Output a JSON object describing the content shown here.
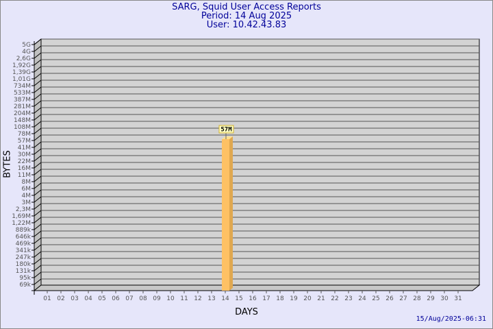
{
  "chart_data": {
    "type": "bar",
    "title": "SARG, Squid User Access Reports",
    "subtitle_period": "Period: 14 Aug 2025",
    "subtitle_user": "User: 10.42.43.83",
    "xlabel": "DAYS",
    "ylabel": "BYTES",
    "y_scale": "log",
    "y_tick_labels": [
      "5G",
      "4G",
      "2,6G",
      "1,92G",
      "1,39G",
      "1,01G",
      "734M",
      "533M",
      "387M",
      "281M",
      "204M",
      "148M",
      "108M",
      "78M",
      "57M",
      "41M",
      "30M",
      "22M",
      "16M",
      "11M",
      "8M",
      "6M",
      "4M",
      "3M",
      "2,3M",
      "1,69M",
      "1,22M",
      "889k",
      "646k",
      "469k",
      "341k",
      "247k",
      "180k",
      "131k",
      "95k",
      "69k"
    ],
    "categories": [
      "01",
      "02",
      "03",
      "04",
      "05",
      "06",
      "07",
      "08",
      "09",
      "10",
      "11",
      "12",
      "13",
      "14",
      "15",
      "16",
      "17",
      "18",
      "19",
      "20",
      "21",
      "22",
      "23",
      "24",
      "25",
      "26",
      "27",
      "28",
      "29",
      "30",
      "31"
    ],
    "bars": [
      {
        "day": "14",
        "value_label": "57M"
      }
    ],
    "grid": true,
    "colors": {
      "bar": "#fec164",
      "bar_side": "#e0a850",
      "bar_top": "#ffe090",
      "plot_bg": "#d3d3d3",
      "text": "#000099"
    }
  },
  "footer": {
    "timestamp": "15/Aug/2025-06:31"
  }
}
